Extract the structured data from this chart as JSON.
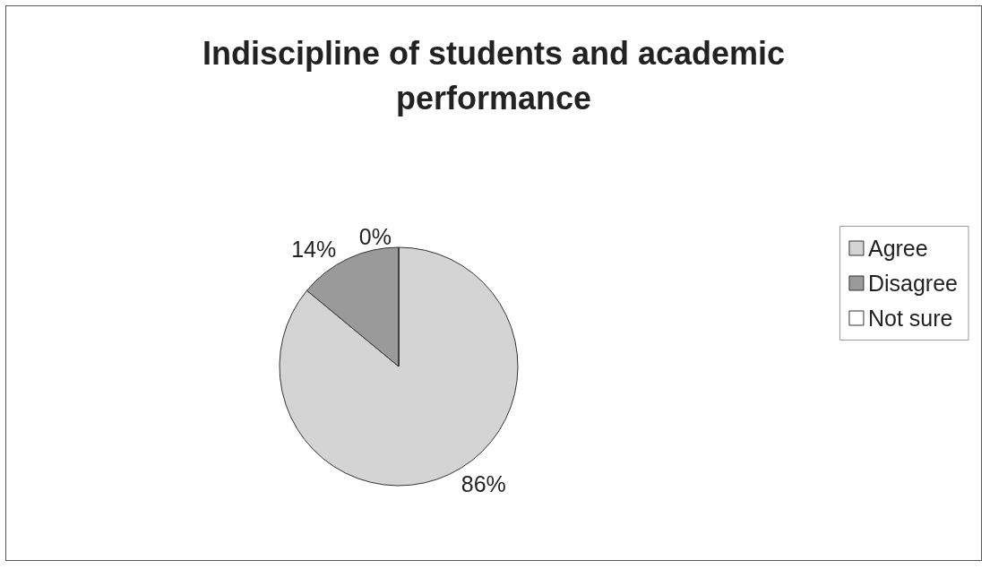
{
  "chart_data": {
    "type": "pie",
    "title": "Indiscipline of students and academic\nperformance",
    "categories": [
      "Agree",
      "Disagree",
      "Not sure"
    ],
    "values": [
      86,
      14,
      0
    ],
    "colors": [
      "#d4d4d4",
      "#9a9a9a",
      "#ffffff"
    ],
    "value_labels": [
      "86%",
      "14%",
      "0%"
    ],
    "legend": "right"
  }
}
